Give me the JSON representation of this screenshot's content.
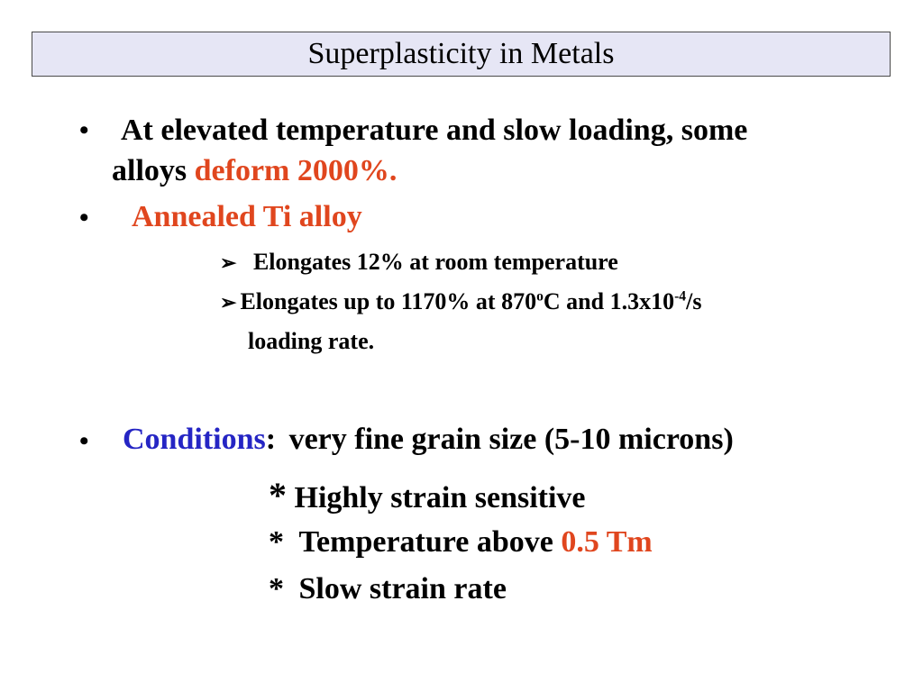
{
  "title": "Superplasticity in Metals",
  "bullets": {
    "b1": {
      "marker": "•",
      "line1": "At elevated temperature and slow loading, some",
      "line2_plain": "alloys ",
      "line2_red": "deform 2000%."
    },
    "b2": {
      "marker": "•",
      "red": "Annealed Ti alloy",
      "sub1": {
        "arrow": "➢",
        "text": "Elongates 12% at room temperature"
      },
      "sub2": {
        "arrow": "➢",
        "part1": "Elongates up to 1170% at 870",
        "sup1": "o",
        "part2": "C and 1.3x10",
        "sup2": "-4",
        "part3": "/s",
        "cont": "loading rate."
      }
    },
    "b3": {
      "marker": "•",
      "blue": "Conditions",
      "colon": ":",
      "rest": "very fine grain size (5-10 microns)",
      "items": [
        {
          "star": "*",
          "text": "Highly strain sensitive"
        },
        {
          "star": "*",
          "text": "Temperature above ",
          "red": "0.5 Tm"
        },
        {
          "star": "*",
          "text": "Slow strain rate"
        }
      ]
    }
  },
  "colors": {
    "accent_red": "#e0461e",
    "accent_blue": "#2525c4",
    "title_bg": "#e6e6f5"
  }
}
